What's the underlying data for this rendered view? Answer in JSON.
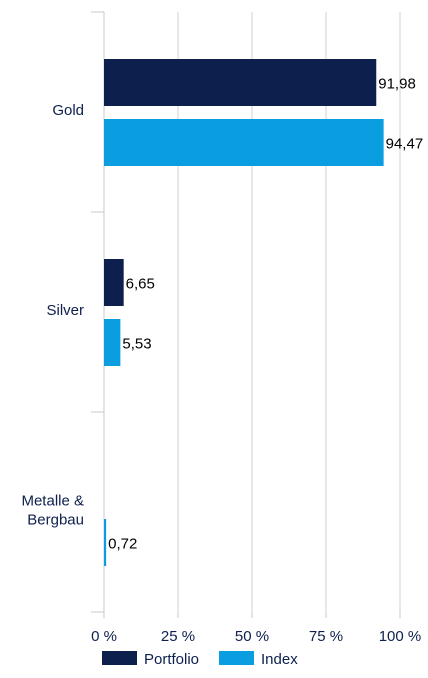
{
  "chart_data": {
    "type": "bar",
    "orientation": "horizontal",
    "categories": [
      "Gold",
      "Silver",
      "Metalle &\nBergbau"
    ],
    "series": [
      {
        "name": "Portfolio",
        "values": [
          91.98,
          6.65,
          0
        ],
        "labels": [
          "91,98",
          "6,65",
          ""
        ],
        "color": "#0d1f4d"
      },
      {
        "name": "Index",
        "values": [
          94.47,
          5.53,
          0.72
        ],
        "labels": [
          "94,47",
          "5,53",
          "0,72"
        ],
        "color": "#0a9ee0"
      }
    ],
    "xlim": [
      0,
      100
    ],
    "xticks": [
      0,
      25,
      50,
      75,
      100
    ],
    "xtick_labels": [
      "0 %",
      "25 %",
      "50 %",
      "75 %",
      "100 %"
    ],
    "grid": true,
    "legend": {
      "position": "bottom"
    },
    "colors": {
      "category_text": "#0d1f4d",
      "tick_text": "#0d1f4d",
      "value_text": "#000000",
      "grid": "#d0d0d0",
      "axis": "#c8c8c8"
    }
  }
}
